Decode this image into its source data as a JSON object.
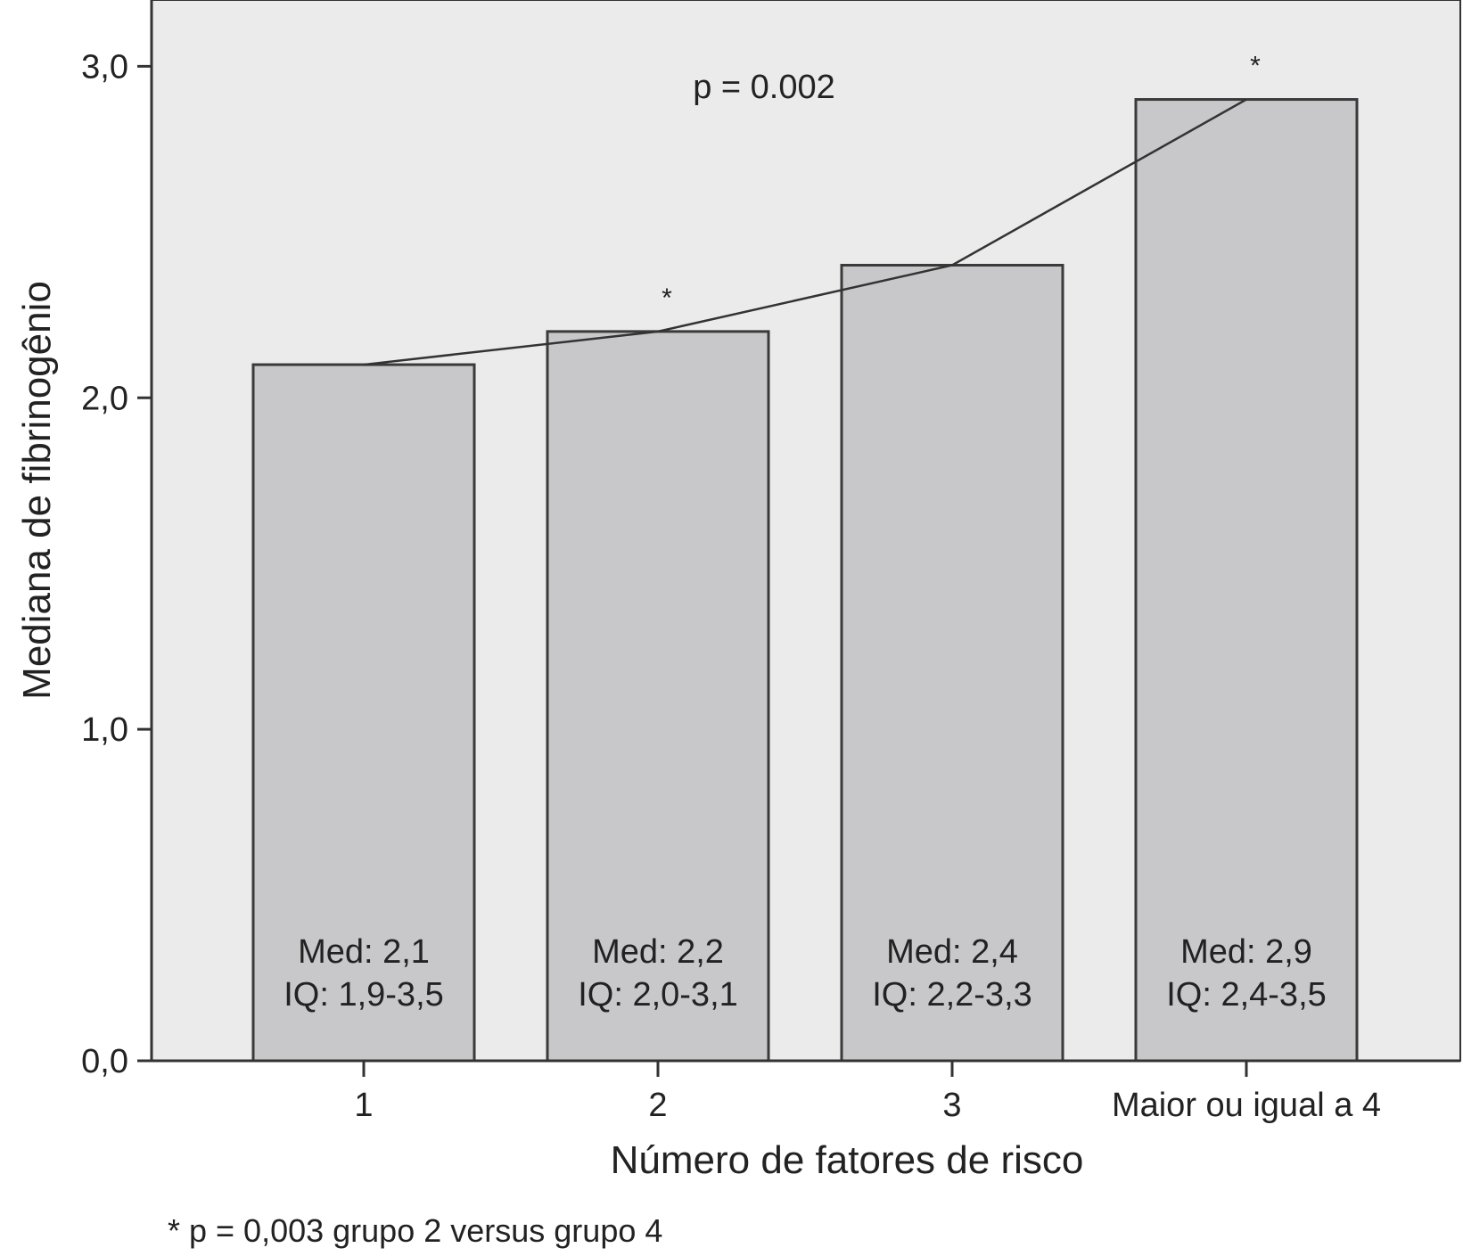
{
  "chart_data": {
    "type": "bar",
    "categories": [
      "1",
      "2",
      "3",
      "Maior ou igual a 4"
    ],
    "values": [
      2.1,
      2.2,
      2.4,
      2.9
    ],
    "bar_labels": [
      {
        "med": "Med: 2,1",
        "iq": "IQ: 1,9-3,5"
      },
      {
        "med": "Med: 2,2",
        "iq": "IQ: 2,0-3,1"
      },
      {
        "med": "Med: 2,4",
        "iq": "IQ: 2,2-3,3"
      },
      {
        "med": "Med: 2,9",
        "iq": "IQ: 2,4-3,5"
      }
    ],
    "trend_line": true,
    "xlabel": "Número de fatores de risco",
    "ylabel": "Mediana de fibrinogênio",
    "ylim": [
      0,
      3.2
    ],
    "yticks": [
      0,
      1,
      2,
      3
    ],
    "ytick_labels": [
      "0,0",
      "1,0",
      "2,0",
      "3,0"
    ],
    "annotations": {
      "pvalue": "p = 0.002",
      "stars": [
        {
          "category_index": 1,
          "text": "*"
        },
        {
          "category_index": 3,
          "text": "*"
        }
      ]
    },
    "footnote": "* p = 0,003 grupo 2 versus grupo 4",
    "colors": {
      "plot_background": "#ebebec",
      "bar_fill": "#c8c8ca",
      "bar_stroke": "#3a3a3a",
      "axis": "#333333",
      "trend_line": "#333333"
    },
    "grid": false
  }
}
